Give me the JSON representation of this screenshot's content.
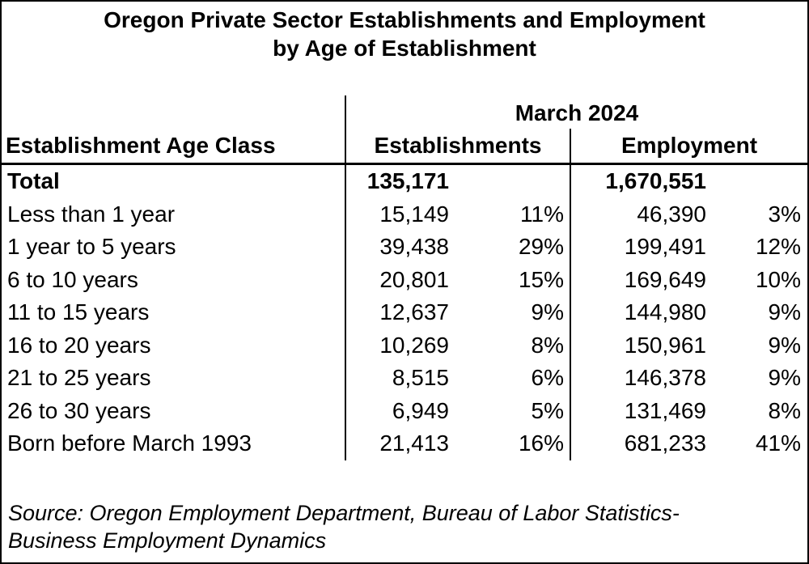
{
  "title": {
    "line1": "Oregon Private Sector Establishments and Employment",
    "line2": "by Age of Establishment"
  },
  "table": {
    "period_header": "March 2024",
    "age_class_header": "Establishment Age Class",
    "establishments_header": "Establishments",
    "employment_header": "Employment",
    "rows": [
      {
        "label": "Total",
        "establishments": "135,171",
        "establishments_pct": "",
        "employment": "1,670,551",
        "employment_pct": ""
      },
      {
        "label": "Less than 1 year",
        "establishments": "15,149",
        "establishments_pct": "11%",
        "employment": "46,390",
        "employment_pct": "3%"
      },
      {
        "label": "1 year to 5 years",
        "establishments": "39,438",
        "establishments_pct": "29%",
        "employment": "199,491",
        "employment_pct": "12%"
      },
      {
        "label": "6 to 10 years",
        "establishments": "20,801",
        "establishments_pct": "15%",
        "employment": "169,649",
        "employment_pct": "10%"
      },
      {
        "label": "11 to 15 years",
        "establishments": "12,637",
        "establishments_pct": "9%",
        "employment": "144,980",
        "employment_pct": "9%"
      },
      {
        "label": "16 to 20 years",
        "establishments": "10,269",
        "establishments_pct": "8%",
        "employment": "150,961",
        "employment_pct": "9%"
      },
      {
        "label": "21 to 25 years",
        "establishments": "8,515",
        "establishments_pct": "6%",
        "employment": "146,378",
        "employment_pct": "9%"
      },
      {
        "label": "26 to 30 years",
        "establishments": "6,949",
        "establishments_pct": "5%",
        "employment": "131,469",
        "employment_pct": "8%"
      },
      {
        "label": "Born before March 1993",
        "establishments": "21,413",
        "establishments_pct": "16%",
        "employment": "681,233",
        "employment_pct": "41%"
      }
    ]
  },
  "source": {
    "line1": "Source: Oregon Employment Department, Bureau of Labor Statistics-",
    "line2": "Business Employment Dynamics"
  },
  "colors": {
    "text": "#000000",
    "background": "#ffffff",
    "border": "#000000"
  }
}
